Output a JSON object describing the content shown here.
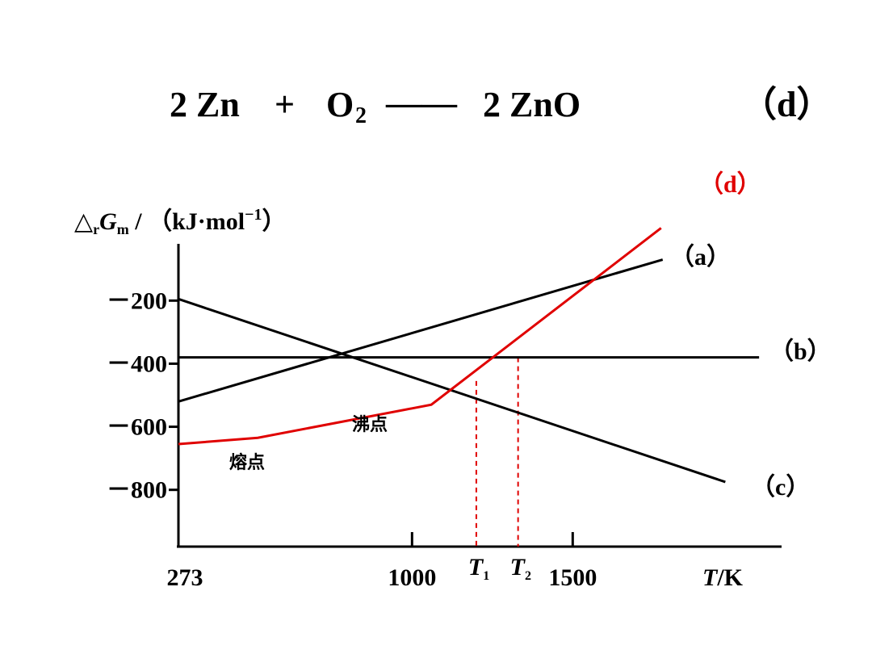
{
  "equation": {
    "lhs1": "2 Zn",
    "plus": "+",
    "o2": "O",
    "o2_sub": "2",
    "arrow": "——",
    "rhs": "2 ZnO",
    "tag": "（d）"
  },
  "chart_data": {
    "type": "line",
    "ylabel": {
      "delta": "△",
      "sub_r": "r",
      "G": "G",
      "sub_m": "m",
      "unit": " / （kJ·mol",
      "exp": "−1",
      "close": "）"
    },
    "xlabel": {
      "T": "T",
      "unit": "/K"
    },
    "xlim": [
      273,
      2150
    ],
    "ylim": [
      -980,
      -20
    ],
    "y_ticks": [
      {
        "value": -200,
        "label": "－200"
      },
      {
        "value": -400,
        "label": "－400"
      },
      {
        "value": -600,
        "label": "－600"
      },
      {
        "value": -800,
        "label": "－800"
      }
    ],
    "x_ticks": [
      {
        "value": 273,
        "label": "273"
      },
      {
        "value": 1000,
        "label": "1000"
      },
      {
        "value": 1500,
        "label": "1500"
      }
    ],
    "x_marks": [
      {
        "value": 1200,
        "label": "T",
        "sub": "1"
      },
      {
        "value": 1330,
        "label": "T",
        "sub": "2"
      }
    ],
    "series": [
      {
        "name": "（a）",
        "color": "#000000",
        "x": [
          273,
          1780
        ],
        "y": [
          -520,
          -70
        ]
      },
      {
        "name": "（b）",
        "color": "#000000",
        "x": [
          273,
          2080
        ],
        "y": [
          -380,
          -380
        ]
      },
      {
        "name": "（c）",
        "color": "#000000",
        "x": [
          273,
          1975
        ],
        "y": [
          -195,
          -775
        ]
      },
      {
        "name": "（d）",
        "color": "#e00000",
        "x": [
          273,
          520,
          1060,
          1775
        ],
        "y": [
          -655,
          -635,
          -530,
          30
        ]
      }
    ],
    "dashed_drops": [
      {
        "x": 1200,
        "y": -455,
        "color": "#e00000"
      },
      {
        "x": 1330,
        "y": -380,
        "color": "#e00000"
      }
    ],
    "annotations": [
      {
        "text": "熔点"
      },
      {
        "text": "沸点"
      }
    ],
    "grid": false,
    "legend": "inline"
  }
}
